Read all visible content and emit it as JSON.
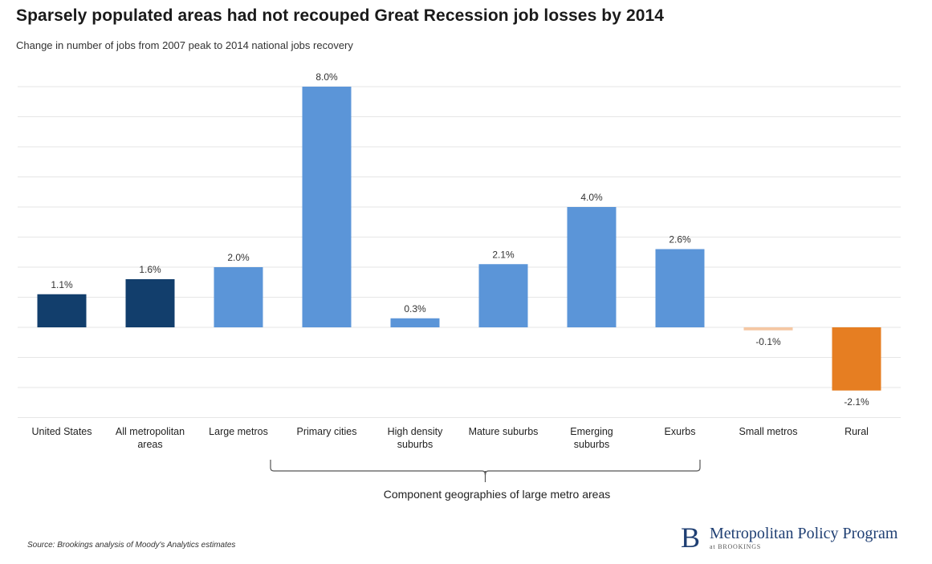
{
  "chart_data": {
    "type": "bar",
    "title": "Sparsely populated areas had not recouped Great Recession job losses by 2014",
    "subtitle": "Change in number of jobs from 2007 peak to 2014 national jobs recovery",
    "xlabel": "",
    "ylabel": "",
    "ylim": [
      -3,
      8
    ],
    "grid": true,
    "categories": [
      [
        "United States"
      ],
      [
        "All metropolitan",
        "areas"
      ],
      [
        "Large metros"
      ],
      [
        "Primary cities"
      ],
      [
        "High density",
        "suburbs"
      ],
      [
        "Mature suburbs"
      ],
      [
        "Emerging",
        "suburbs"
      ],
      [
        "Exurbs"
      ],
      [
        "Small metros"
      ],
      [
        "Rural"
      ]
    ],
    "values": [
      1.1,
      1.6,
      2.0,
      8.0,
      0.3,
      2.1,
      4.0,
      2.6,
      -0.1,
      -2.1
    ],
    "value_labels": [
      "1.1%",
      "1.6%",
      "2.0%",
      "8.0%",
      "0.3%",
      "2.1%",
      "4.0%",
      "2.6%",
      "-0.1%",
      "-2.1%"
    ],
    "bar_colors": [
      "#123e6c",
      "#123e6c",
      "#5b95d8",
      "#5b95d8",
      "#5b95d8",
      "#5b95d8",
      "#5b95d8",
      "#5b95d8",
      "#f5c7a3",
      "#e67e22"
    ],
    "group_annotation": {
      "label": "Component geographies of large metro areas",
      "from_index": 3,
      "to_index": 7
    }
  },
  "source": "Source: Brookings analysis of Moody's Analytics estimates",
  "logo": {
    "mark": "B",
    "name": "Metropolitan Policy Program",
    "sub": "at BROOKINGS"
  }
}
